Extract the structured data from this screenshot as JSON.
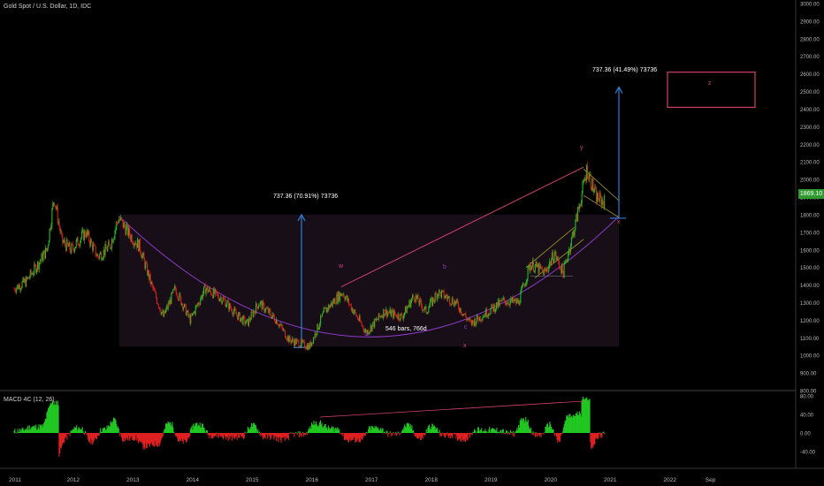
{
  "header": {
    "symbol_title": "Gold Spot / U.S. Dollar, 1D, IDC"
  },
  "macd": {
    "title": "MACD 4C (12, 26)"
  },
  "price_tag": "1869.10",
  "annotations": {
    "measure_left": "737.36 (70.91%) 73736",
    "measure_right": "737.36 (41.49%) 73736",
    "bars_label": "546 bars, 766d",
    "wave_w": "w",
    "wave_a": "a",
    "wave_b": "b",
    "wave_c": "c",
    "wave_x_low": "x",
    "wave_y": "y",
    "wave_x_right": "x",
    "wave_z": "z"
  },
  "colors": {
    "up": "#22c822",
    "down": "#e02020",
    "blue": "#2f7fd8",
    "pink": "#d0406a",
    "purple": "#8a3ac8",
    "yellow": "#a8a020",
    "axis_text": "#b8b8b8"
  },
  "chart_data": {
    "type": "candlestick",
    "title": "Gold Spot / U.S. Dollar, 1D, IDC",
    "y_ticks": [
      "3000.00",
      "2900.00",
      "2800.00",
      "2700.00",
      "2600.00",
      "2500.00",
      "2400.00",
      "2300.00",
      "2200.00",
      "2100.00",
      "2000.00",
      "1900.00",
      "1800.00",
      "1700.00",
      "1600.00",
      "1500.00",
      "1400.00",
      "1300.00",
      "1200.00",
      "1100.00",
      "1000.00",
      "900.00",
      "800.00",
      "700.00"
    ],
    "ylim": [
      700,
      3000
    ],
    "x_ticks": [
      "2011",
      "2012",
      "2013",
      "2014",
      "2015",
      "2016",
      "2017",
      "2018",
      "2019",
      "2020",
      "2021",
      "2022",
      "Sep"
    ],
    "price_path": [
      [
        2011.0,
        1380
      ],
      [
        2011.2,
        1420
      ],
      [
        2011.4,
        1520
      ],
      [
        2011.55,
        1600
      ],
      [
        2011.67,
        1900
      ],
      [
        2011.8,
        1650
      ],
      [
        2011.95,
        1600
      ],
      [
        2012.2,
        1700
      ],
      [
        2012.4,
        1560
      ],
      [
        2012.6,
        1620
      ],
      [
        2012.75,
        1780
      ],
      [
        2012.95,
        1680
      ],
      [
        2013.1,
        1620
      ],
      [
        2013.3,
        1400
      ],
      [
        2013.5,
        1220
      ],
      [
        2013.7,
        1380
      ],
      [
        2013.95,
        1200
      ],
      [
        2014.2,
        1380
      ],
      [
        2014.5,
        1320
      ],
      [
        2014.7,
        1240
      ],
      [
        2014.9,
        1180
      ],
      [
        2015.1,
        1300
      ],
      [
        2015.4,
        1200
      ],
      [
        2015.6,
        1090
      ],
      [
        2015.95,
        1050
      ],
      [
        2016.2,
        1250
      ],
      [
        2016.5,
        1360
      ],
      [
        2016.9,
        1130
      ],
      [
        2017.2,
        1250
      ],
      [
        2017.5,
        1220
      ],
      [
        2017.7,
        1340
      ],
      [
        2017.9,
        1250
      ],
      [
        2018.1,
        1360
      ],
      [
        2018.4,
        1300
      ],
      [
        2018.65,
        1180
      ],
      [
        2018.9,
        1240
      ],
      [
        2019.2,
        1310
      ],
      [
        2019.45,
        1300
      ],
      [
        2019.65,
        1520
      ],
      [
        2019.9,
        1470
      ],
      [
        2020.05,
        1580
      ],
      [
        2020.2,
        1470
      ],
      [
        2020.4,
        1740
      ],
      [
        2020.6,
        2060
      ],
      [
        2020.75,
        1900
      ],
      [
        2020.9,
        1869
      ]
    ],
    "macd_histogram_ylim": [
      -60,
      80
    ],
    "macd_y_ticks": [
      "80.00",
      "40.00",
      "0.00",
      "-40.00"
    ]
  }
}
